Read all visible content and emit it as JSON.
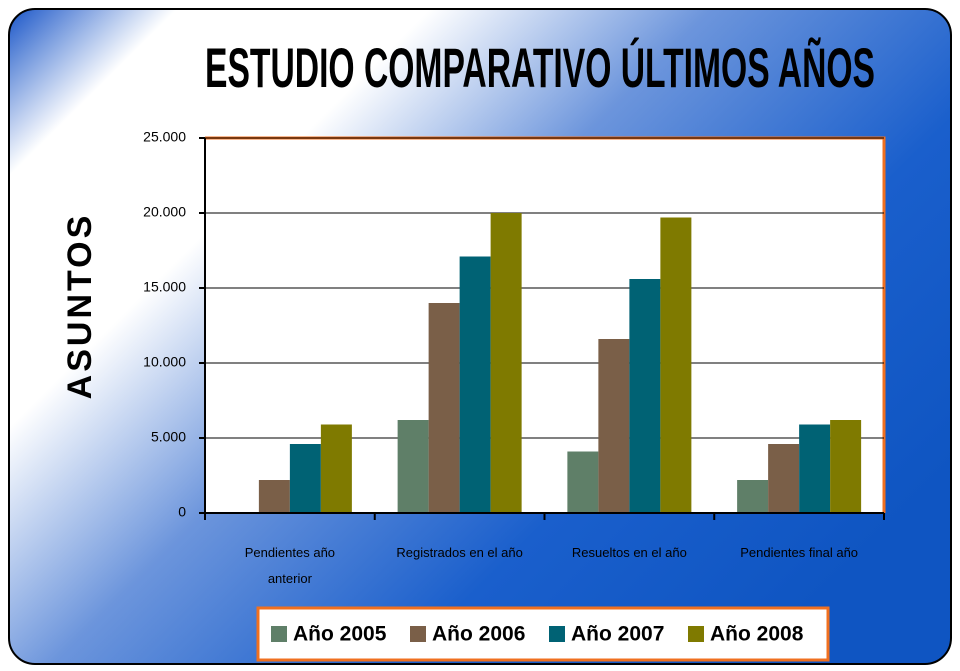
{
  "chart_data": {
    "type": "bar",
    "title": "ESTUDIO COMPARATIVO ÚLTIMOS AÑOS",
    "y_label": "ASUNTOS",
    "categories": [
      "Pendientes año anterior",
      "Registrados en el año",
      "Resueltos en el año",
      "Pendientes final año"
    ],
    "series": [
      {
        "name": "Año 2005",
        "color": "#5f7f68",
        "values": [
          0,
          6200,
          4100,
          2200
        ]
      },
      {
        "name": "Año 2006",
        "color": "#7a5f48",
        "values": [
          2200,
          14000,
          11600,
          4600
        ]
      },
      {
        "name": "Año 2007",
        "color": "#006274",
        "values": [
          4600,
          17100,
          15600,
          5900
        ]
      },
      {
        "name": "Año 2008",
        "color": "#7f7a00",
        "values": [
          5900,
          20000,
          19700,
          6200
        ]
      }
    ],
    "ylim": [
      0,
      25000
    ],
    "yticks": [
      0,
      {
        "value": 5000,
        "label": "5.000"
      },
      {
        "value": 10000,
        "label": "10.000"
      },
      {
        "value": 15000,
        "label": "15.000"
      },
      {
        "value": 20000,
        "label": "20.000"
      },
      {
        "value": 25000,
        "label": "25.000"
      }
    ],
    "grid": true,
    "legend": "bottom"
  }
}
